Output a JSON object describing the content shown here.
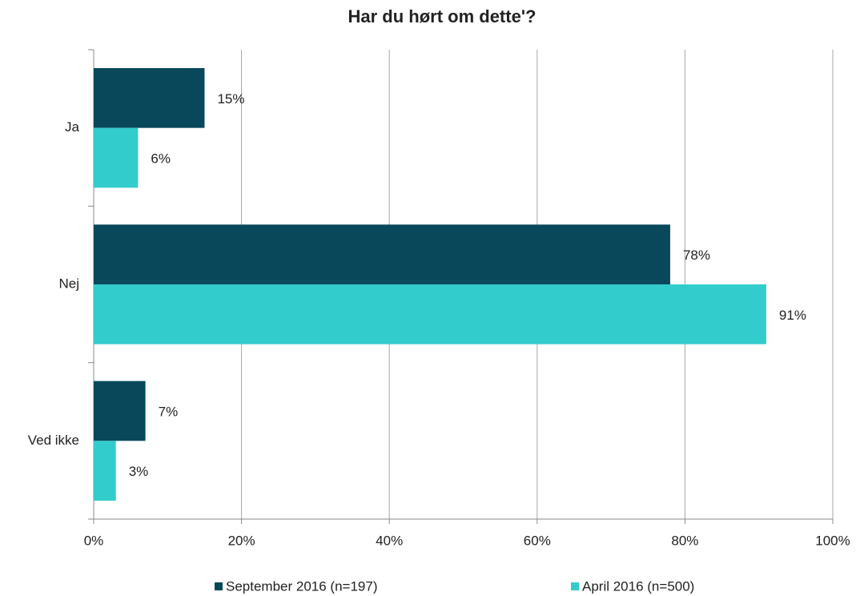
{
  "chart_data": {
    "type": "hbar",
    "title": "Har du hørt om dette'?",
    "categories": [
      "Ja",
      "Nej",
      "Ved ikke"
    ],
    "series": [
      {
        "name": "September 2016 (n=197)",
        "color": "#08485a",
        "values": [
          15,
          78,
          7
        ],
        "value_labels": [
          "15%",
          "78%",
          "7%"
        ]
      },
      {
        "name": "April 2016 (n=500)",
        "color": "#33cccc",
        "values": [
          6,
          91,
          3
        ],
        "value_labels": [
          "6%",
          "91%",
          "3%"
        ]
      }
    ],
    "xlim": [
      0,
      100
    ],
    "xticks": [
      {
        "value": 0,
        "label": "0%"
      },
      {
        "value": 20,
        "label": "20%"
      },
      {
        "value": 40,
        "label": "40%"
      },
      {
        "value": 60,
        "label": "60%"
      },
      {
        "value": 80,
        "label": "80%"
      },
      {
        "value": 100,
        "label": "100%"
      }
    ],
    "grid": true,
    "legend": "bottom"
  }
}
